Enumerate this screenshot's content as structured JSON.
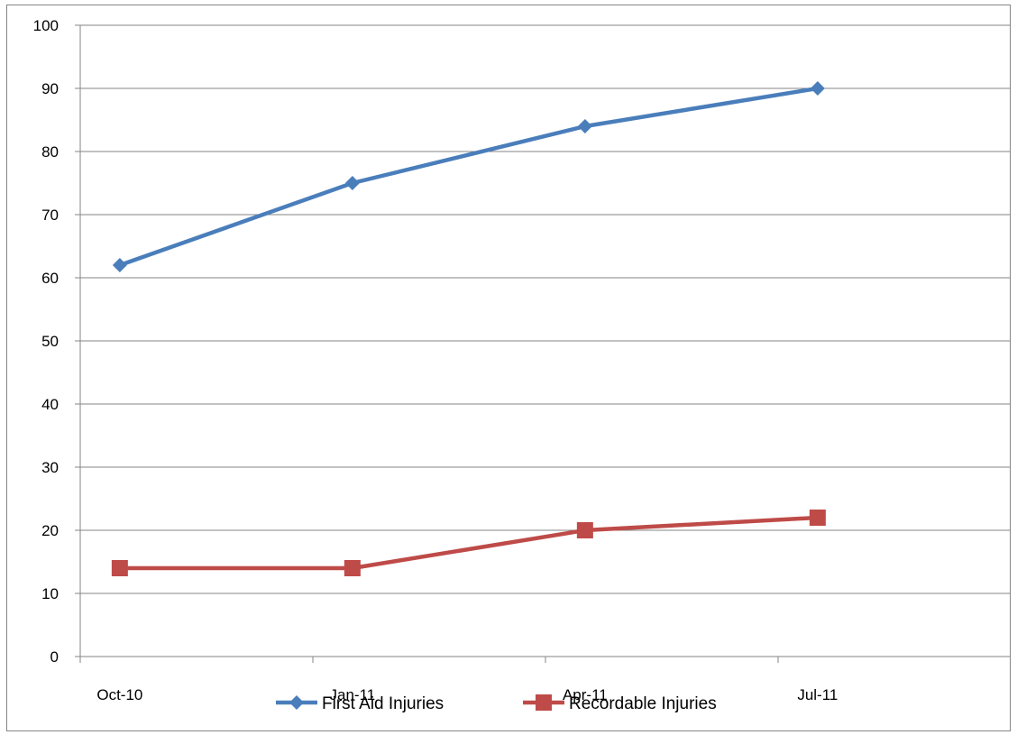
{
  "chart_data": {
    "type": "line",
    "categories": [
      "Oct-10",
      "Jan-11",
      "Apr-11",
      "Jul-11"
    ],
    "series": [
      {
        "name": "First Aid Injuries",
        "values": [
          62,
          75,
          84,
          90
        ],
        "color": "#4a7ebb",
        "marker": "diamond"
      },
      {
        "name": "Recordable Injuries",
        "values": [
          14,
          14,
          20,
          22
        ],
        "color": "#be4b48",
        "marker": "square"
      }
    ],
    "ylim": [
      0,
      100
    ],
    "yticks": [
      0,
      10,
      20,
      30,
      40,
      50,
      60,
      70,
      80,
      90,
      100
    ],
    "grid": true,
    "legend": "bottom",
    "gridline_color": "#868686",
    "axis_color": "#868686"
  }
}
